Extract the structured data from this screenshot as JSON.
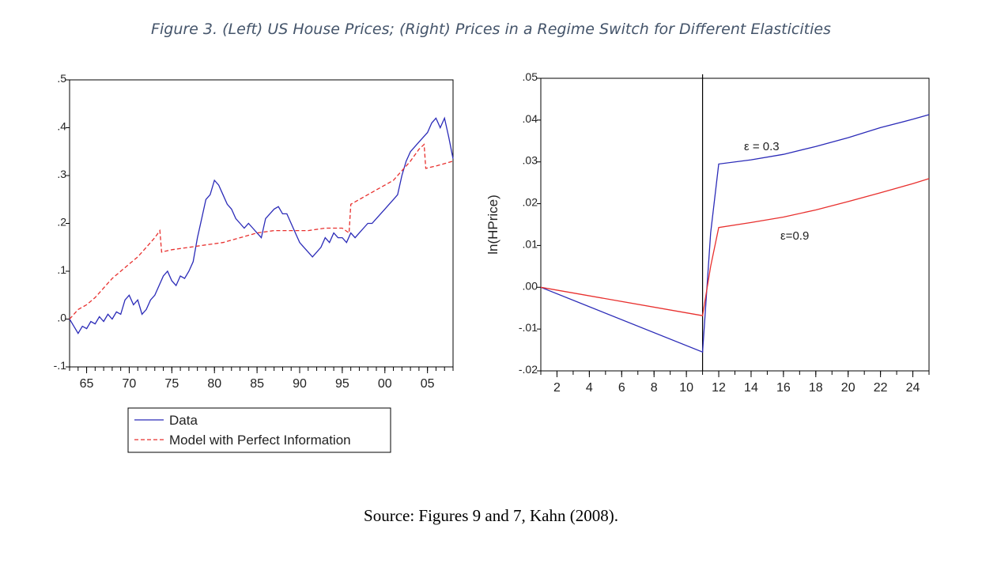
{
  "figure": {
    "caption": "Figure 3. (Left) US House Prices; (Right) Prices in a Regime Switch for Different Elasticities",
    "source": "Source: Figures 9 and 7, Kahn (2008)."
  },
  "colors": {
    "blue": "#2B2BB8",
    "red": "#E8302E",
    "axis": "#000000"
  },
  "chart_data": [
    {
      "type": "line",
      "xlabel": "",
      "ylabel": "",
      "xlim": [
        1963,
        2008
      ],
      "ylim": [
        -0.1,
        0.5
      ],
      "y_ticks": [
        -0.1,
        0.0,
        0.1,
        0.2,
        0.3,
        0.4,
        0.5
      ],
      "y_tick_labels": [
        "-.1",
        ".0",
        ".1",
        ".2",
        ".3",
        ".4",
        ".5"
      ],
      "x_ticks": [
        1965,
        1970,
        1975,
        1980,
        1985,
        1990,
        1995,
        2000,
        2005
      ],
      "x_tick_labels": [
        "65",
        "70",
        "75",
        "80",
        "85",
        "90",
        "95",
        "00",
        "05"
      ],
      "legend_position": "bottom",
      "grid": false,
      "series": [
        {
          "name": "Data",
          "style": "solid",
          "x": [
            1963,
            1963.5,
            1964,
            1964.5,
            1965,
            1965.5,
            1966,
            1966.5,
            1967,
            1967.5,
            1968,
            1968.5,
            1969,
            1969.5,
            1970,
            1970.5,
            1971,
            1971.5,
            1972,
            1972.5,
            1973,
            1973.5,
            1974,
            1974.5,
            1975,
            1975.5,
            1976,
            1976.5,
            1977,
            1977.5,
            1978,
            1978.5,
            1979,
            1979.5,
            1980,
            1980.5,
            1981,
            1981.5,
            1982,
            1982.5,
            1983,
            1983.5,
            1984,
            1984.5,
            1985,
            1985.5,
            1986,
            1986.5,
            1987,
            1987.5,
            1988,
            1988.5,
            1989,
            1989.5,
            1990,
            1990.5,
            1991,
            1991.5,
            1992,
            1992.5,
            1993,
            1993.5,
            1994,
            1994.5,
            1995,
            1995.5,
            1996,
            1996.5,
            1997,
            1997.5,
            1998,
            1998.5,
            1999,
            1999.5,
            2000,
            2000.5,
            2001,
            2001.5,
            2002,
            2002.5,
            2003,
            2003.5,
            2004,
            2004.5,
            2005,
            2005.5,
            2006,
            2006.5,
            2007,
            2007.5,
            2008
          ],
          "y": [
            0.0,
            -0.015,
            -0.03,
            -0.015,
            -0.02,
            -0.005,
            -0.01,
            0.005,
            -0.005,
            0.01,
            0.0,
            0.015,
            0.01,
            0.04,
            0.05,
            0.03,
            0.04,
            0.01,
            0.02,
            0.04,
            0.05,
            0.07,
            0.09,
            0.1,
            0.08,
            0.07,
            0.09,
            0.085,
            0.1,
            0.12,
            0.17,
            0.21,
            0.25,
            0.26,
            0.29,
            0.28,
            0.26,
            0.24,
            0.23,
            0.21,
            0.2,
            0.19,
            0.2,
            0.19,
            0.18,
            0.17,
            0.21,
            0.22,
            0.23,
            0.235,
            0.22,
            0.22,
            0.2,
            0.18,
            0.16,
            0.15,
            0.14,
            0.13,
            0.14,
            0.15,
            0.17,
            0.16,
            0.18,
            0.17,
            0.17,
            0.16,
            0.18,
            0.17,
            0.18,
            0.19,
            0.2,
            0.2,
            0.21,
            0.22,
            0.23,
            0.24,
            0.25,
            0.26,
            0.3,
            0.33,
            0.35,
            0.36,
            0.37,
            0.38,
            0.39,
            0.41,
            0.42,
            0.4,
            0.42,
            0.38,
            0.335
          ]
        },
        {
          "name": "Model with Perfect Information",
          "style": "dashed",
          "x": [
            1963,
            1964,
            1965,
            1966,
            1967,
            1968,
            1969,
            1970,
            1971,
            1972,
            1973,
            1973.6,
            1973.8,
            1975,
            1977,
            1979,
            1981,
            1983,
            1985,
            1987,
            1989,
            1991,
            1993,
            1995,
            1995.8,
            1996,
            1997,
            1998,
            1999,
            2000,
            2001,
            2002,
            2003,
            2004,
            2004.6,
            2004.8,
            2006,
            2007,
            2008
          ],
          "y": [
            0.0,
            0.02,
            0.03,
            0.045,
            0.065,
            0.085,
            0.1,
            0.115,
            0.13,
            0.15,
            0.17,
            0.185,
            0.14,
            0.145,
            0.15,
            0.155,
            0.16,
            0.17,
            0.18,
            0.185,
            0.185,
            0.185,
            0.19,
            0.19,
            0.18,
            0.24,
            0.25,
            0.26,
            0.27,
            0.28,
            0.29,
            0.31,
            0.33,
            0.355,
            0.365,
            0.315,
            0.32,
            0.325,
            0.33
          ]
        }
      ]
    },
    {
      "type": "line",
      "xlabel": "",
      "ylabel": "ln(HPrice)",
      "xlim": [
        1,
        25
      ],
      "ylim": [
        -0.02,
        0.05
      ],
      "y_ticks": [
        -0.02,
        -0.01,
        0.0,
        0.01,
        0.02,
        0.03,
        0.04,
        0.05
      ],
      "y_tick_labels": [
        "-.02",
        "-.01",
        ".00",
        ".01",
        ".02",
        ".03",
        ".04",
        ".05"
      ],
      "x_ticks": [
        2,
        4,
        6,
        8,
        10,
        12,
        14,
        16,
        18,
        20,
        22,
        24
      ],
      "x_tick_labels": [
        "2",
        "4",
        "6",
        "8",
        "10",
        "12",
        "14",
        "16",
        "18",
        "20",
        "22",
        "24"
      ],
      "vline_x": 11,
      "grid": false,
      "series": [
        {
          "name": "ε = 0.3",
          "style": "solid",
          "color_key": "blue",
          "x": [
            1,
            11,
            11.5,
            12,
            14,
            16,
            18,
            20,
            22,
            24,
            25
          ],
          "y": [
            0.0,
            -0.0155,
            0.013,
            0.0295,
            0.0305,
            0.0318,
            0.0337,
            0.0358,
            0.0382,
            0.0402,
            0.0413
          ]
        },
        {
          "name": "ε=0.9",
          "style": "solid",
          "color_key": "red",
          "x": [
            1,
            11,
            11.5,
            12,
            14,
            16,
            18,
            20,
            22,
            24,
            25
          ],
          "y": [
            0.0,
            -0.0068,
            0.005,
            0.0143,
            0.0155,
            0.0168,
            0.0185,
            0.0205,
            0.0226,
            0.0248,
            0.026
          ]
        }
      ]
    }
  ]
}
